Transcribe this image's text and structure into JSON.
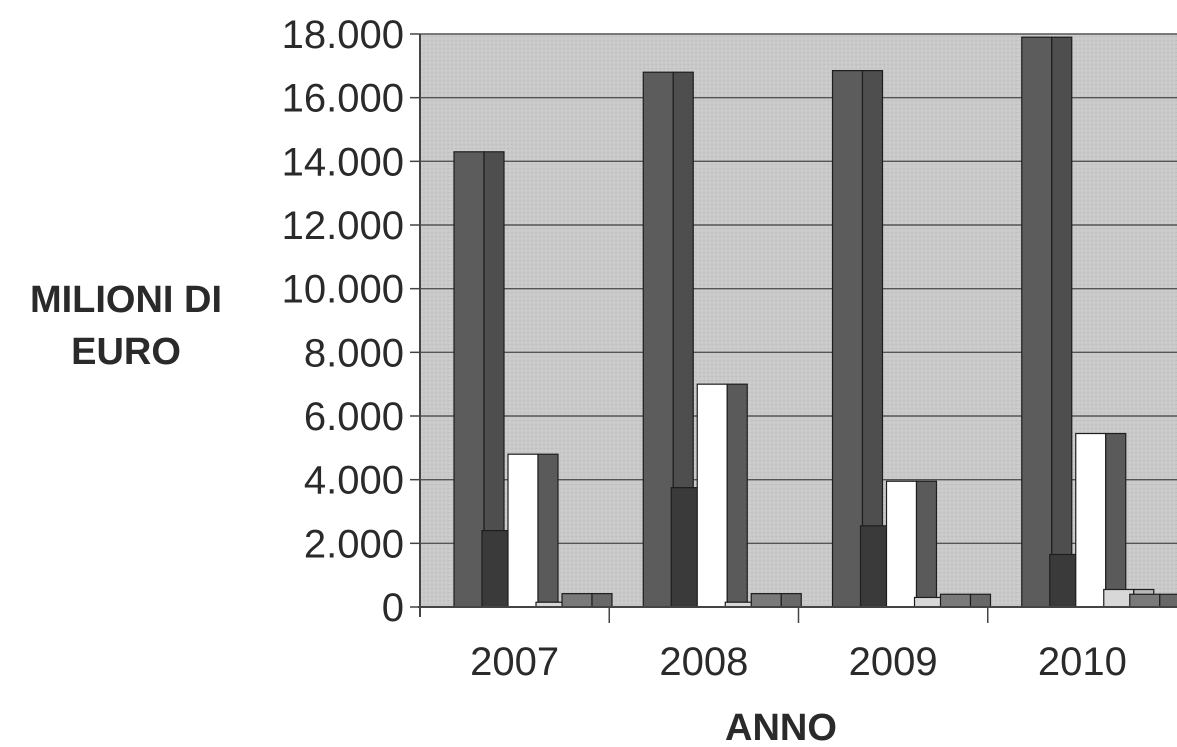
{
  "chart_data": {
    "type": "bar",
    "title": "",
    "xlabel": "ANNO",
    "ylabel": [
      "MILIONI DI",
      "EURO"
    ],
    "categories": [
      "2007",
      "2008",
      "2009",
      "2010"
    ],
    "ylim": [
      0,
      18000
    ],
    "yticks": [
      0,
      2000,
      4000,
      6000,
      8000,
      10000,
      12000,
      14000,
      16000,
      18000
    ],
    "ytick_labels": [
      "0",
      "2.000",
      "4.000",
      "6.000",
      "8.000",
      "10.000",
      "12.000",
      "14.000",
      "16.000",
      "18.000"
    ],
    "grid": true,
    "legend": "none",
    "series": [
      {
        "values": [
          14300,
          16800,
          16850,
          17900
        ],
        "color": "#5c5c5c"
      },
      {
        "values": [
          2400,
          3750,
          2550,
          1650
        ],
        "color": "#3a3a3a"
      },
      {
        "values": [
          4800,
          7000,
          3950,
          5450
        ],
        "color": "#ffffff"
      },
      {
        "values": [
          150,
          150,
          300,
          550
        ],
        "color": "#d8d8d8"
      },
      {
        "values": [
          420,
          420,
          400,
          400
        ],
        "color": "#7a7a7a"
      }
    ],
    "colors": {
      "plot_background": "#c9c9c9",
      "grid": "#555555",
      "axis": "#444444"
    }
  }
}
